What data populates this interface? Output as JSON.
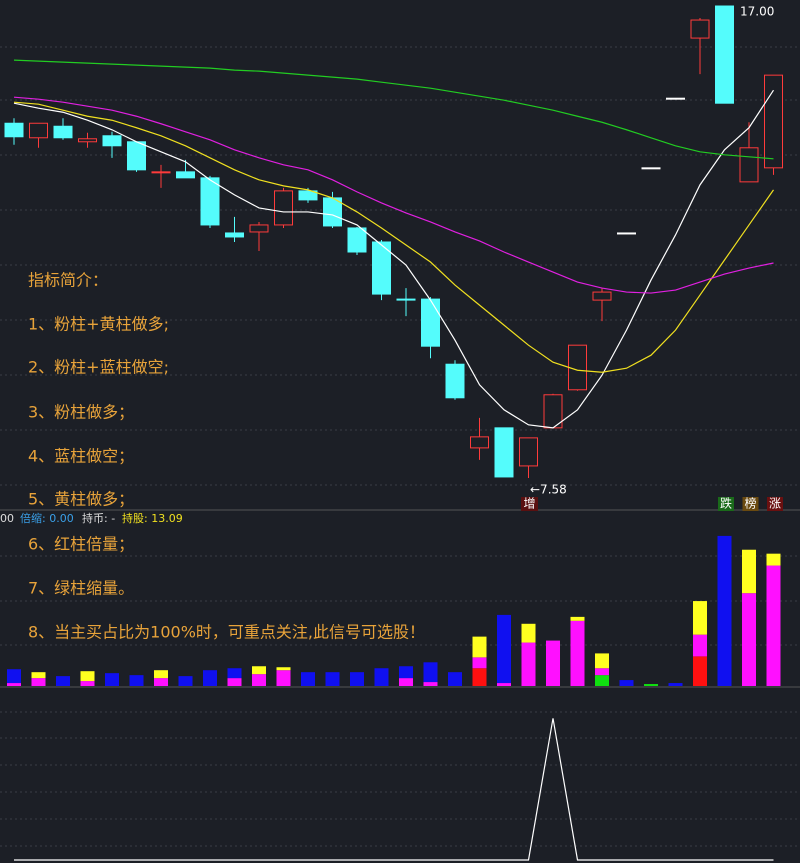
{
  "status_bar": [
    "00",
    "倍缩: 0.00",
    "持币: -",
    "持股: 13.09"
  ],
  "chart_data": [
    {
      "type": "candlestick",
      "open": [
        14.66,
        14.37,
        14.6,
        14.29,
        14.41,
        14.29,
        13.67,
        13.69,
        13.57,
        12.47,
        12.49,
        12.63,
        13.31,
        13.17,
        12.57,
        12.29,
        11.15,
        11.15,
        9.85,
        8.18,
        8.58,
        7.82,
        8.58,
        9.34,
        11.13,
        12.47,
        13.77,
        15.16,
        16.36,
        17.0,
        13.49,
        13.77
      ],
      "high": [
        14.76,
        14.66,
        14.76,
        14.47,
        14.49,
        14.29,
        13.83,
        13.93,
        13.61,
        12.79,
        12.69,
        13.37,
        13.37,
        13.29,
        12.59,
        12.33,
        11.37,
        11.19,
        9.93,
        8.78,
        8.58,
        8.38,
        9.26,
        10.23,
        11.37,
        12.47,
        13.77,
        15.16,
        16.76,
        17.0,
        14.68,
        15.62
      ],
      "low": [
        14.23,
        14.17,
        14.33,
        14.17,
        13.97,
        13.69,
        13.37,
        13.57,
        12.57,
        12.29,
        12.11,
        12.57,
        13.07,
        12.57,
        12.03,
        11.13,
        10.81,
        9.97,
        9.14,
        7.94,
        7.6,
        7.58,
        8.58,
        9.32,
        10.71,
        12.47,
        13.77,
        15.16,
        15.64,
        15.06,
        13.49,
        13.63
      ],
      "close": [
        14.39,
        14.66,
        14.37,
        14.35,
        14.21,
        13.73,
        13.69,
        13.57,
        12.63,
        12.39,
        12.63,
        13.31,
        13.13,
        12.61,
        12.09,
        11.25,
        11.13,
        10.21,
        9.18,
        8.4,
        7.6,
        8.38,
        9.24,
        10.23,
        11.29,
        12.47,
        13.77,
        15.16,
        16.72,
        15.06,
        14.17,
        15.62
      ],
      "up_color": "#ff3b3b",
      "down_color": "#54fcfc",
      "flat_color": "#ffffff",
      "series": [
        {
          "color": "#ffffff",
          "values": [
            15.06,
            14.96,
            14.88,
            14.72,
            14.53,
            14.29,
            14.09,
            13.89,
            13.53,
            13.23,
            12.97,
            12.89,
            12.89,
            12.83,
            12.63,
            12.23,
            11.83,
            11.13,
            10.33,
            9.44,
            8.94,
            8.64,
            8.58,
            8.94,
            9.63,
            10.53,
            11.53,
            12.43,
            13.43,
            14.13,
            14.57,
            15.32
          ]
        },
        {
          "color": "#f0e020",
          "values": [
            15.08,
            15.04,
            14.92,
            14.8,
            14.72,
            14.57,
            14.41,
            14.21,
            13.97,
            13.73,
            13.53,
            13.41,
            13.33,
            13.17,
            12.89,
            12.57,
            12.23,
            11.89,
            11.43,
            11.03,
            10.63,
            10.23,
            9.89,
            9.73,
            9.69,
            9.77,
            10.03,
            10.53,
            11.23,
            11.93,
            12.63,
            13.33
          ]
        },
        {
          "color": "#e020e0",
          "values": [
            15.18,
            15.14,
            15.08,
            15.0,
            14.92,
            14.8,
            14.65,
            14.49,
            14.33,
            14.13,
            13.97,
            13.83,
            13.73,
            13.53,
            13.29,
            13.07,
            12.87,
            12.69,
            12.49,
            12.31,
            12.09,
            11.89,
            11.69,
            11.49,
            11.37,
            11.29,
            11.27,
            11.33,
            11.49,
            11.65,
            11.77,
            11.87
          ]
        },
        {
          "color": "#22cc22",
          "values": [
            15.92,
            15.9,
            15.88,
            15.86,
            15.84,
            15.82,
            15.8,
            15.78,
            15.76,
            15.72,
            15.7,
            15.66,
            15.62,
            15.58,
            15.54,
            15.48,
            15.42,
            15.36,
            15.28,
            15.2,
            15.12,
            15.02,
            14.92,
            14.8,
            14.68,
            14.53,
            14.37,
            14.21,
            14.09,
            14.03,
            13.99,
            13.95
          ]
        }
      ],
      "ylim": [
        7.04,
        17.12
      ],
      "high_label": "17.00",
      "low_label": "←7.58",
      "signal": "增",
      "tags": [
        "跌",
        "榜",
        "涨"
      ],
      "annotations": [
        "指标简介：",
        "1、粉柱+黄柱做多;",
        "2、粉柱+蓝柱做空;",
        "3、粉柱做多；",
        "4、蓝柱做空；",
        "5、黄柱做多；",
        "6、红柱倍量；",
        "7、绿柱缩量。",
        "8、当主买占比为100%时，可重点关注,此信号可选股！"
      ]
    },
    {
      "type": "stacked_bar",
      "series": [
        {
          "color": "#ff1010",
          "values": [
            0,
            0,
            0,
            0,
            0,
            0,
            0,
            0,
            0,
            0,
            0,
            0,
            0,
            0,
            0,
            0,
            0,
            0,
            0,
            18,
            0,
            0,
            0,
            0,
            0,
            0,
            0,
            0,
            30,
            0,
            0,
            0
          ]
        },
        {
          "color": "#10e010",
          "values": [
            0,
            0,
            0,
            0,
            0,
            0,
            0,
            0,
            0,
            0,
            0,
            0,
            0,
            0,
            0,
            0,
            0,
            0,
            0,
            0,
            0,
            0,
            0,
            0,
            11,
            0,
            2,
            0,
            0,
            0,
            0,
            0
          ]
        },
        {
          "color": "#ff10ff",
          "values": [
            3,
            8,
            0,
            5,
            0,
            0,
            8,
            0,
            0,
            8,
            12,
            16,
            0,
            0,
            0,
            0,
            8,
            4,
            0,
            11,
            3,
            44,
            46,
            66,
            7,
            0,
            0,
            0,
            22,
            0,
            94,
            122
          ]
        },
        {
          "color": "#1010f0",
          "values": [
            14,
            0,
            10,
            0,
            13,
            11,
            0,
            10,
            16,
            10,
            0,
            0,
            14,
            14,
            14,
            18,
            12,
            20,
            14,
            0,
            69,
            0,
            0,
            0,
            0,
            6,
            0,
            3,
            0,
            152,
            0,
            0
          ]
        },
        {
          "color": "#ffff20",
          "values": [
            0,
            6,
            0,
            10,
            0,
            0,
            8,
            0,
            0,
            0,
            8,
            3,
            0,
            0,
            0,
            0,
            0,
            0,
            0,
            21,
            0,
            19,
            0,
            4,
            15,
            0,
            0,
            0,
            34,
            0,
            44,
            12
          ]
        }
      ],
      "ylim": [
        0,
        160
      ]
    },
    {
      "type": "line",
      "color": "#ffffff",
      "values": [
        0,
        0,
        0,
        0,
        0,
        0,
        0,
        0,
        0,
        0,
        0,
        0,
        0,
        0,
        0,
        0,
        0,
        0,
        0,
        0,
        0,
        0,
        1,
        0,
        0,
        0,
        0,
        0,
        0,
        0,
        0,
        0
      ],
      "ylim": [
        0,
        1.2
      ]
    }
  ]
}
